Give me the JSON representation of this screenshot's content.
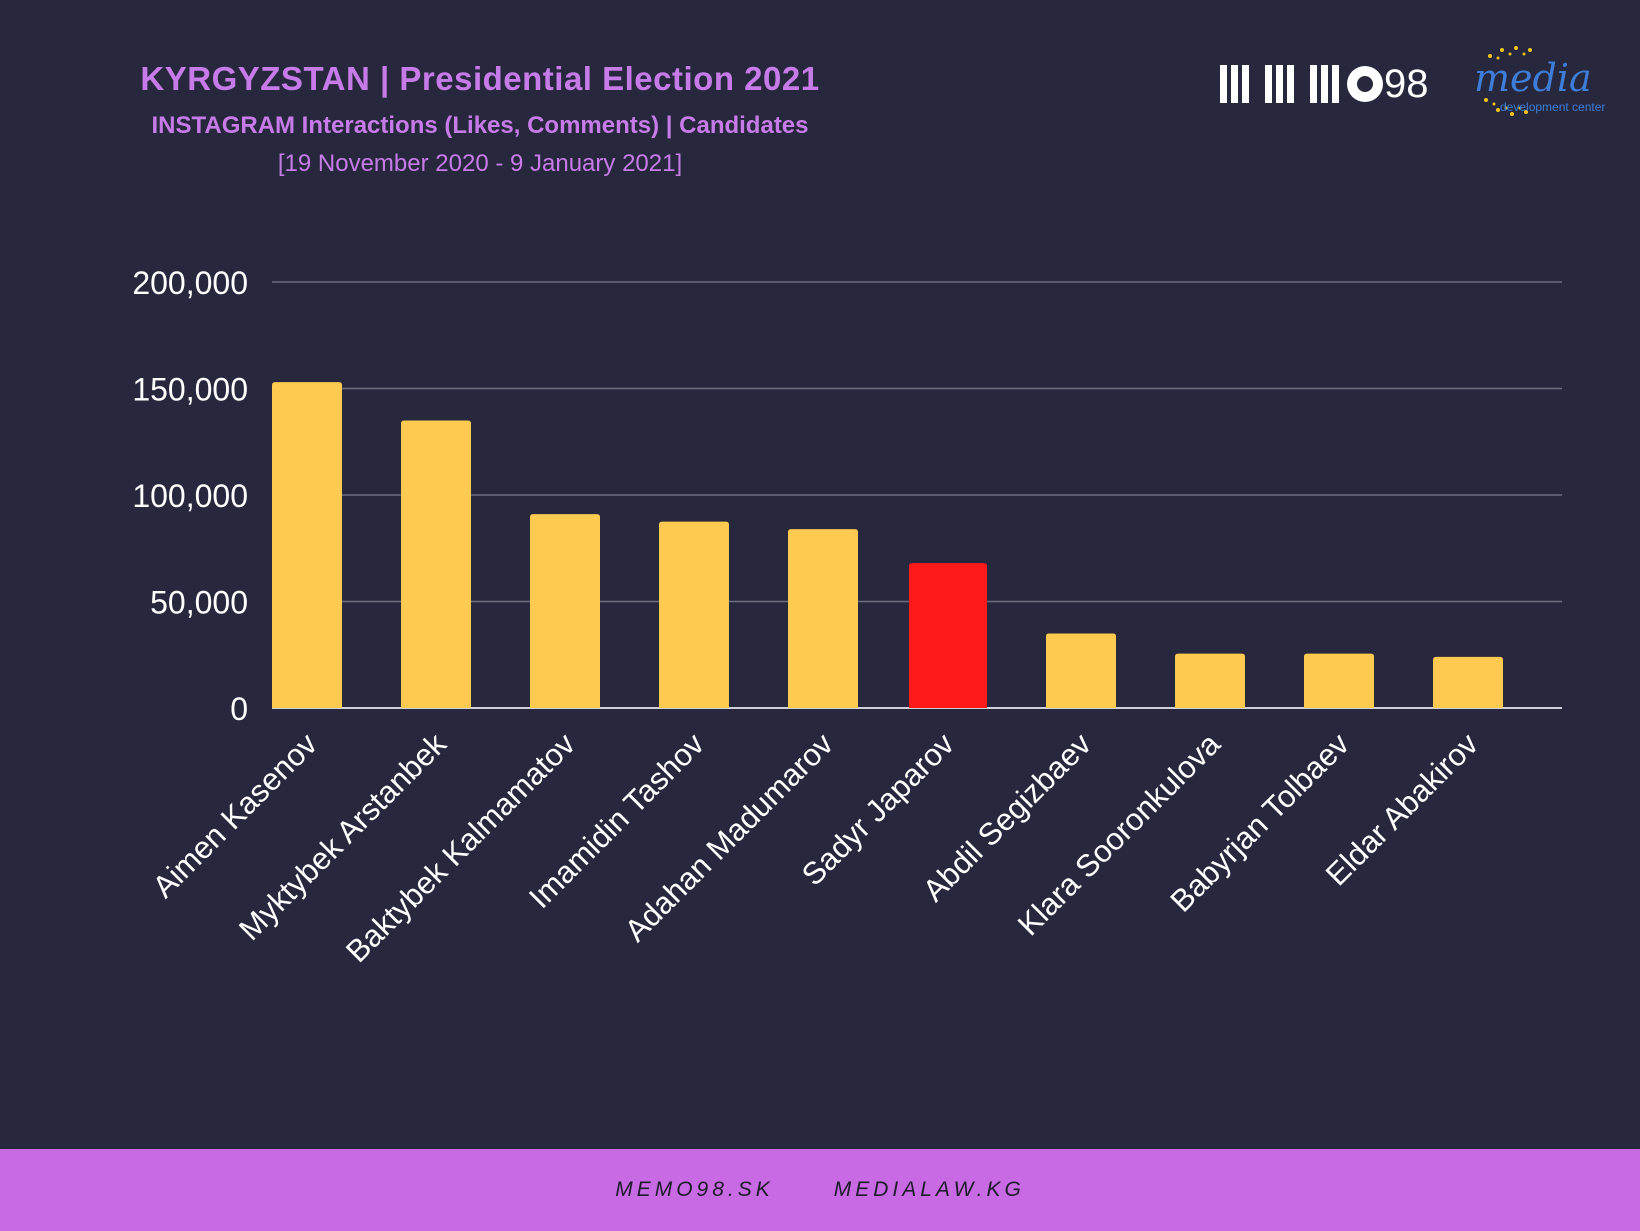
{
  "header": {
    "title": "KYRGYZSTAN | Presidential Election 2021",
    "subtitle": "INSTAGRAM Interactions (Likes, Comments) | Candidates",
    "date_range": "[19 November 2020 - 9 January 2021]"
  },
  "logos": {
    "memo98_text": "98",
    "mdc_word": "media",
    "mdc_small": "development center"
  },
  "footer": {
    "link1": "MEMO98.SK",
    "link2": "MEDIALAW.KG"
  },
  "colors": {
    "background": "#27283d",
    "bar_default": "#fecb50",
    "bar_highlight": "#ff1a1a",
    "title": "#c77be8",
    "footer_band": "#c86ae3",
    "grid": "#6d6e80"
  },
  "chart_data": {
    "type": "bar",
    "categories": [
      "Aimen Kasenov",
      "Myktybek Arstanbek",
      "Baktybek Kalmamatov",
      "Imamidin Tashov",
      "Adahan Madumarov",
      "Sadyr Japarov",
      "Abdil Segizbaev",
      "Klara Sooronkulova",
      "Babyrjan Tolbaev",
      "Eldar Abakirov"
    ],
    "values": [
      153000,
      135000,
      91000,
      87500,
      84000,
      68000,
      35000,
      25500,
      25500,
      24000
    ],
    "highlight_index": 5,
    "yticks": [
      0,
      50000,
      100000,
      150000,
      200000
    ],
    "ytick_labels": [
      "0",
      "50,000",
      "100,000",
      "150,000",
      "200,000"
    ],
    "ylim": [
      0,
      200000
    ],
    "grid": true,
    "legend": "none",
    "xlabel": "",
    "ylabel": ""
  }
}
